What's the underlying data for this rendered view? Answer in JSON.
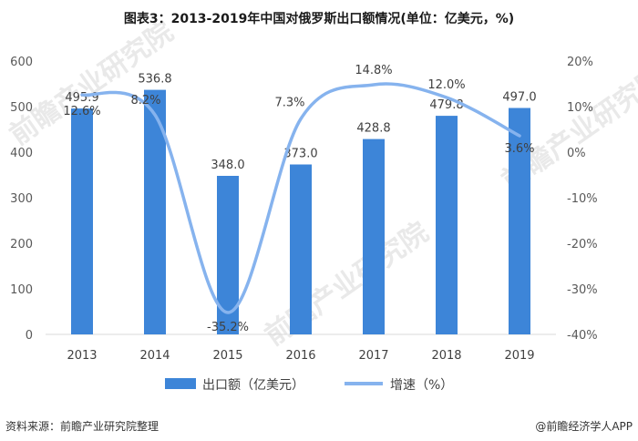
{
  "title": "图表3：2013-2019年中国对俄罗斯出口额情况(单位：亿美元，%)",
  "footer": {
    "source": "资料来源：前瞻产业研究院整理",
    "credit": "@前瞻经济学人APP"
  },
  "watermark": "前瞻产业研究院",
  "colors": {
    "bar": "#3d85d8",
    "line": "#86b3ee"
  },
  "chart_data": {
    "type": "bar",
    "categories": [
      "2013",
      "2014",
      "2015",
      "2016",
      "2017",
      "2018",
      "2019"
    ],
    "series": [
      {
        "name": "出口额（亿美元）",
        "type": "bar",
        "axis": "left",
        "values": [
          495.9,
          536.8,
          348.0,
          373.0,
          428.8,
          479.8,
          497.0
        ],
        "labels": [
          "495.9",
          "536.8",
          "348.0",
          "373.0",
          "428.8",
          "479.8",
          "497.0"
        ]
      },
      {
        "name": "增速（%）",
        "type": "line",
        "axis": "right",
        "values": [
          12.6,
          8.2,
          -35.2,
          7.3,
          14.8,
          12.0,
          3.6
        ],
        "labels": [
          "12.6%",
          "8.2%",
          "-35.2%",
          "7.3%",
          "14.8%",
          "12.0%",
          "3.6%"
        ]
      }
    ],
    "y_left": {
      "range": [
        0,
        600
      ],
      "ticks": [
        "0",
        "100",
        "200",
        "300",
        "400",
        "500",
        "600"
      ]
    },
    "y_right": {
      "range": [
        -40,
        20
      ],
      "ticks": [
        "-40%",
        "-30%",
        "-20%",
        "-10%",
        "0%",
        "10%",
        "20%"
      ]
    },
    "grid": false,
    "legend": "bottom"
  }
}
